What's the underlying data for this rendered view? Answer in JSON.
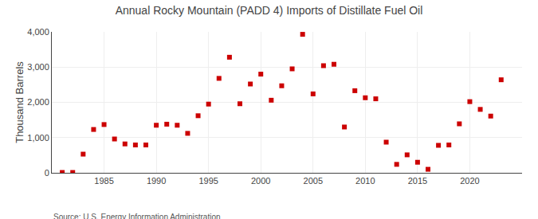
{
  "chart_data": {
    "type": "scatter",
    "title": "Annual Rocky Mountain (PADD 4) Imports of Distillate Fuel Oil",
    "ylabel": "Thousand Barrels",
    "annotations": [
      "Source: U.S. Energy Information Administration"
    ],
    "x": [
      1981,
      1982,
      1983,
      1984,
      1985,
      1986,
      1987,
      1988,
      1989,
      1990,
      1991,
      1992,
      1993,
      1994,
      1995,
      1996,
      1997,
      1998,
      1999,
      2000,
      2001,
      2002,
      2003,
      2004,
      2005,
      2006,
      2007,
      2008,
      2009,
      2010,
      2011,
      2012,
      2013,
      2014,
      2015,
      2016,
      2017,
      2018,
      2019,
      2020,
      2021,
      2022,
      2023
    ],
    "values": [
      10,
      10,
      530,
      1230,
      1370,
      960,
      820,
      790,
      790,
      1350,
      1380,
      1350,
      1120,
      1620,
      1950,
      2680,
      3280,
      1960,
      2520,
      2800,
      2060,
      2470,
      2950,
      3930,
      2240,
      3040,
      3080,
      1300,
      2330,
      2130,
      2100,
      870,
      240,
      510,
      300,
      100,
      780,
      790,
      1390,
      2020,
      1800,
      1610,
      2640
    ],
    "color": "#cc0000",
    "marker": "square",
    "xlim": [
      1980,
      2025
    ],
    "xticks": [
      1985,
      1990,
      1995,
      2000,
      2005,
      2010,
      2015,
      2020
    ],
    "ylim": [
      0,
      4000
    ],
    "yticks": [
      0,
      {
        "value": 1000,
        "label": "1,000"
      },
      {
        "value": 2000,
        "label": "2,000"
      },
      {
        "value": 3000,
        "label": "3,000"
      },
      {
        "value": 4000,
        "label": "4,000"
      }
    ],
    "grid": true
  }
}
